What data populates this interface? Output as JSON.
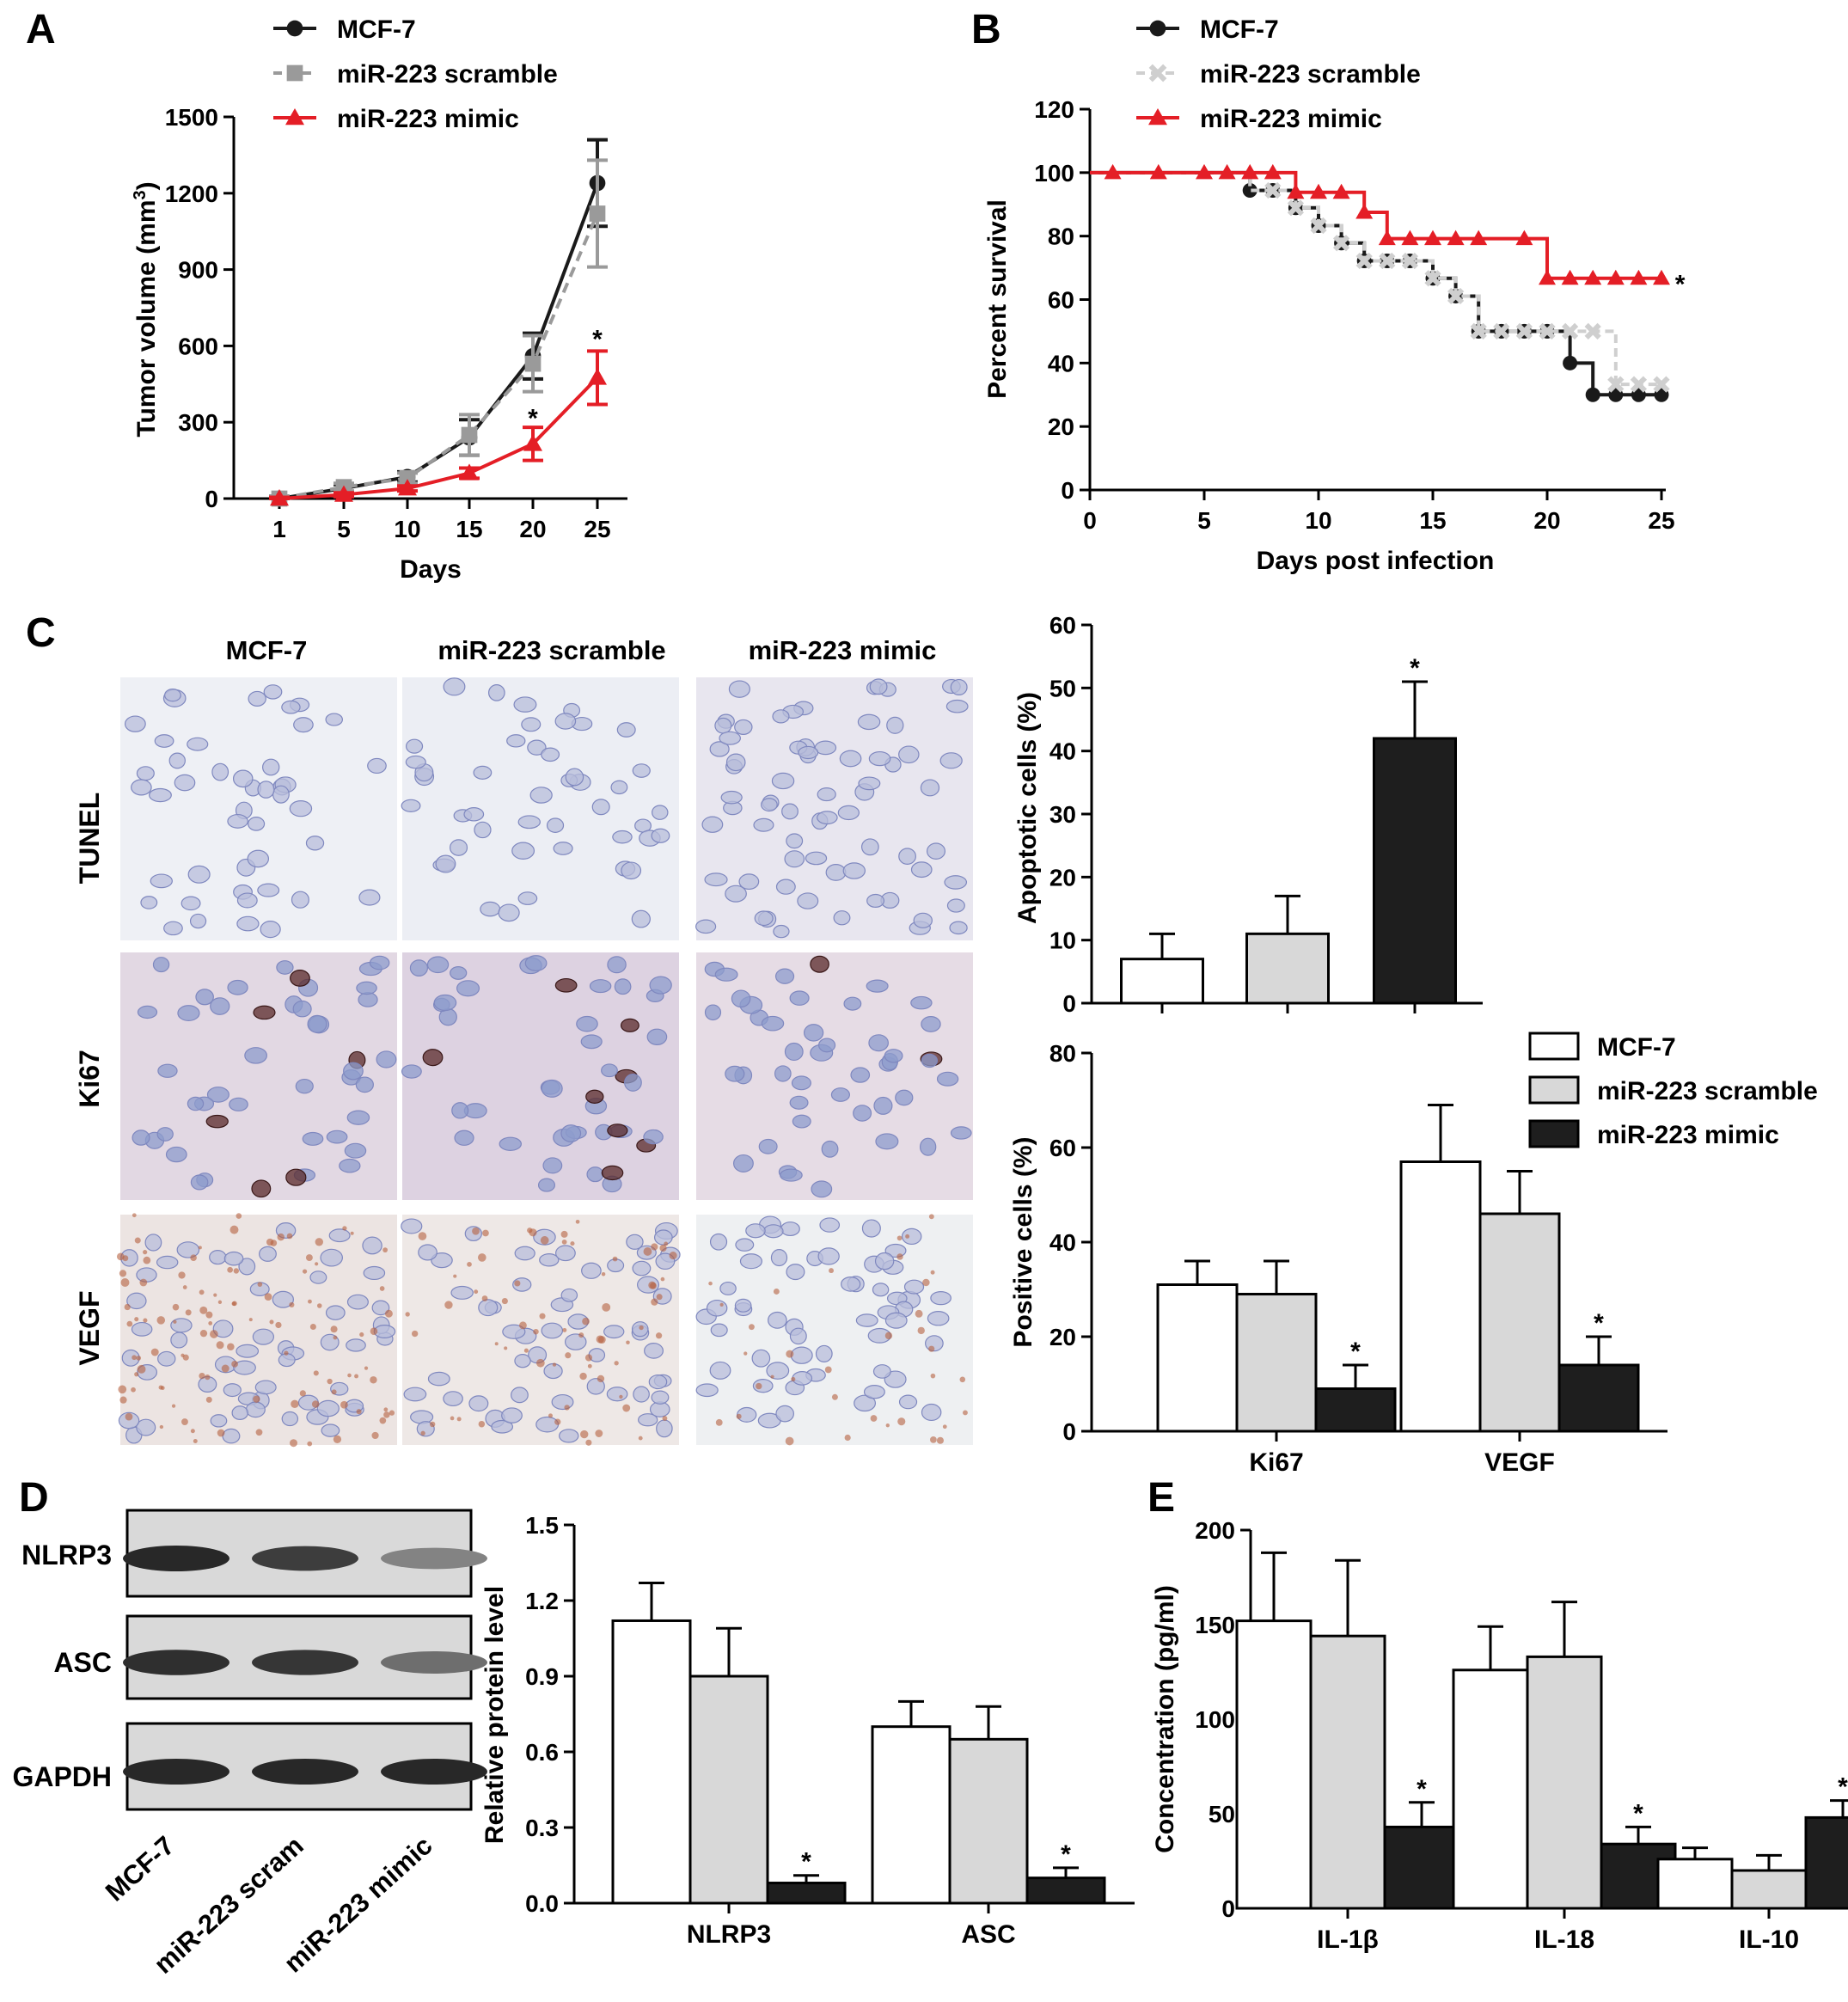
{
  "colors": {
    "mcf7": "#1a1a1a",
    "scramble": "#9a9a9a",
    "scramble_km": "#cfcfcf",
    "mimic": "#e41e26",
    "bar_white": "#ffffff",
    "bar_gray": "#d8d8d8",
    "bar_black": "#1e1e1e"
  },
  "panels": {
    "A": "A",
    "B": "B",
    "C": "C",
    "D": "D",
    "E": "E"
  },
  "panel_c": {
    "columns": [
      "MCF-7",
      "miR-223 scramble",
      "miR-223 mimic"
    ],
    "rows": [
      "TUNEL",
      "Ki67",
      "VEGF"
    ]
  },
  "panel_d_blot": {
    "bands": [
      "NLRP3",
      "ASC",
      "GAPDH"
    ],
    "lanes": [
      "MCF-7",
      "miR-223 scram",
      "miR-223 mimic"
    ],
    "band_intensity": [
      [
        1.0,
        0.85,
        0.35
      ],
      [
        0.95,
        0.9,
        0.5
      ],
      [
        1.0,
        1.0,
        1.0
      ]
    ]
  },
  "chart_data": [
    {
      "id": "A",
      "type": "line",
      "xlabel": "Days",
      "ylabel": "Tumor volume (mm",
      "ylabel_sup": "3",
      "ylabel_tail": ")",
      "xticks": [
        1,
        5,
        10,
        15,
        20,
        25
      ],
      "yticks": [
        0,
        300,
        600,
        900,
        1200,
        1500
      ],
      "ylim": [
        0,
        1500
      ],
      "series": [
        {
          "name": "MCF-7",
          "marker": "circle",
          "dashed": false,
          "x": [
            1,
            5,
            10,
            15,
            20,
            25
          ],
          "y": [
            0,
            40,
            85,
            240,
            560,
            1240
          ],
          "err": [
            10,
            15,
            20,
            70,
            90,
            170
          ]
        },
        {
          "name": "miR-223 scramble",
          "marker": "square",
          "dashed": true,
          "x": [
            1,
            5,
            10,
            15,
            20,
            25
          ],
          "y": [
            0,
            45,
            80,
            250,
            530,
            1120
          ],
          "err": [
            10,
            15,
            20,
            80,
            110,
            210
          ]
        },
        {
          "name": "miR-223 mimic",
          "marker": "triangle",
          "dashed": false,
          "x": [
            1,
            5,
            10,
            15,
            20,
            25
          ],
          "y": [
            0,
            15,
            40,
            100,
            215,
            475
          ],
          "err": [
            5,
            8,
            10,
            20,
            65,
            105
          ]
        }
      ],
      "annotations": [
        {
          "x": 20,
          "y": 330,
          "text": "*"
        },
        {
          "x": 25,
          "y": 640,
          "text": "*"
        }
      ]
    },
    {
      "id": "B",
      "type": "line",
      "subtype": "kaplan-meier",
      "xlabel": "Days post infection",
      "ylabel": "Percent survival",
      "xticks": [
        0,
        5,
        10,
        15,
        20,
        25
      ],
      "yticks": [
        0,
        20,
        40,
        60,
        80,
        100,
        120
      ],
      "xlim": [
        0,
        25
      ],
      "ylim": [
        0,
        120
      ],
      "series": [
        {
          "name": "MCF-7",
          "marker": "circle",
          "dashed": false,
          "steps": [
            [
              0,
              100
            ],
            [
              7,
              94.4
            ],
            [
              8,
              94.4
            ],
            [
              9,
              88.9
            ],
            [
              10,
              83.3
            ],
            [
              11,
              77.8
            ],
            [
              12,
              72.2
            ],
            [
              15,
              66.7
            ],
            [
              16,
              61.1
            ],
            [
              17,
              50
            ],
            [
              21,
              40
            ],
            [
              22,
              30
            ],
            [
              25,
              30
            ]
          ],
          "markers": [
            [
              7,
              94.4
            ],
            [
              8,
              94.4
            ],
            [
              9,
              88.9
            ],
            [
              10,
              83.3
            ],
            [
              11,
              77.8
            ],
            [
              12,
              72.2
            ],
            [
              13,
              72.2
            ],
            [
              14,
              72.2
            ],
            [
              15,
              66.7
            ],
            [
              16,
              61.1
            ],
            [
              17,
              50
            ],
            [
              18,
              50
            ],
            [
              19,
              50
            ],
            [
              20,
              50
            ],
            [
              21,
              40
            ],
            [
              22,
              30
            ],
            [
              23,
              30
            ],
            [
              24,
              30
            ],
            [
              25,
              30
            ]
          ]
        },
        {
          "name": "miR-223 scramble",
          "marker": "x",
          "dashed": true,
          "steps": [
            [
              0,
              100
            ],
            [
              7,
              94.4
            ],
            [
              8,
              94.4
            ],
            [
              9,
              88.9
            ],
            [
              10,
              83.3
            ],
            [
              11,
              77.8
            ],
            [
              12,
              72.2
            ],
            [
              15,
              66.7
            ],
            [
              16,
              61.1
            ],
            [
              17,
              50
            ],
            [
              23,
              33.3
            ],
            [
              25,
              33.3
            ]
          ],
          "markers": [
            [
              8,
              94.4
            ],
            [
              9,
              88.9
            ],
            [
              10,
              83.3
            ],
            [
              11,
              77.8
            ],
            [
              12,
              72.2
            ],
            [
              13,
              72.2
            ],
            [
              14,
              72.2
            ],
            [
              15,
              66.7
            ],
            [
              16,
              61.1
            ],
            [
              17,
              50
            ],
            [
              18,
              50
            ],
            [
              19,
              50
            ],
            [
              20,
              50
            ],
            [
              21,
              50
            ],
            [
              22,
              50
            ],
            [
              23,
              33.3
            ],
            [
              24,
              33.3
            ],
            [
              25,
              33.3
            ]
          ]
        },
        {
          "name": "miR-223 mimic",
          "marker": "triangle",
          "dashed": false,
          "steps": [
            [
              0,
              100
            ],
            [
              9,
              93.8
            ],
            [
              12,
              87.5
            ],
            [
              13,
              79.2
            ],
            [
              20,
              66.7
            ],
            [
              25,
              66.7
            ]
          ],
          "markers": [
            [
              1,
              100
            ],
            [
              3,
              100
            ],
            [
              5,
              100
            ],
            [
              6,
              100
            ],
            [
              7,
              100
            ],
            [
              8,
              100
            ],
            [
              9,
              93.8
            ],
            [
              10,
              93.8
            ],
            [
              11,
              93.8
            ],
            [
              12,
              87.5
            ],
            [
              13,
              79.2
            ],
            [
              14,
              79.2
            ],
            [
              15,
              79.2
            ],
            [
              16,
              79.2
            ],
            [
              17,
              79.2
            ],
            [
              19,
              79.2
            ],
            [
              20,
              66.7
            ],
            [
              21,
              66.7
            ],
            [
              22,
              66.7
            ],
            [
              23,
              66.7
            ],
            [
              24,
              66.7
            ],
            [
              25,
              66.7
            ]
          ]
        }
      ],
      "annotations": [
        {
          "x": 26,
          "y": 66,
          "text": "*"
        }
      ]
    },
    {
      "id": "C-apoptotic",
      "type": "bar",
      "ylabel": "Apoptotic cells (%)",
      "yticks": [
        0,
        10,
        20,
        30,
        40,
        50,
        60
      ],
      "ylim": [
        0,
        60
      ],
      "categories": [
        "MCF-7",
        "miR-223 scramble",
        "miR-223 mimic"
      ],
      "values": [
        7,
        11,
        42
      ],
      "errors": [
        4,
        6,
        9
      ],
      "stars": [
        false,
        false,
        true
      ]
    },
    {
      "id": "C-positive",
      "type": "bar",
      "ylabel": "Positive cells (%)",
      "yticks": [
        0,
        20,
        40,
        60,
        80
      ],
      "ylim": [
        0,
        80
      ],
      "categories": [
        "Ki67",
        "VEGF"
      ],
      "series": [
        {
          "name": "MCF-7",
          "values": [
            31,
            57
          ],
          "errors": [
            5,
            12
          ],
          "stars": [
            false,
            false
          ]
        },
        {
          "name": "miR-223 scramble",
          "values": [
            29,
            46
          ],
          "errors": [
            7,
            9
          ],
          "stars": [
            false,
            false
          ]
        },
        {
          "name": "miR-223 mimic",
          "values": [
            9,
            14
          ],
          "errors": [
            5,
            6
          ],
          "stars": [
            true,
            true
          ]
        }
      ]
    },
    {
      "id": "D",
      "type": "bar",
      "ylabel": "Relative protein level",
      "yticks": [
        "0.0",
        "0.3",
        "0.6",
        "0.9",
        "1.2",
        "1.5"
      ],
      "ylim": [
        0,
        1.5
      ],
      "categories": [
        "NLRP3",
        "ASC"
      ],
      "series": [
        {
          "name": "MCF-7",
          "values": [
            1.12,
            0.7
          ],
          "errors": [
            0.15,
            0.1
          ],
          "stars": [
            false,
            false
          ]
        },
        {
          "name": "miR-223 scramble",
          "values": [
            0.9,
            0.65
          ],
          "errors": [
            0.19,
            0.13
          ],
          "stars": [
            false,
            false
          ]
        },
        {
          "name": "miR-223 mimic",
          "values": [
            0.08,
            0.1
          ],
          "errors": [
            0.03,
            0.04
          ],
          "stars": [
            true,
            true
          ]
        }
      ]
    },
    {
      "id": "E",
      "type": "bar",
      "ylabel": "Concentration (pg/ml)",
      "yticks": [
        0,
        50,
        100,
        150,
        200
      ],
      "ylim": [
        0,
        200
      ],
      "categories": [
        "IL-1β",
        "IL-18",
        "IL-10"
      ],
      "series": [
        {
          "name": "MCF-7",
          "values": [
            152,
            126,
            26
          ],
          "errors": [
            36,
            23,
            6
          ],
          "stars": [
            false,
            false,
            false
          ]
        },
        {
          "name": "miR-223 scramble",
          "values": [
            144,
            133,
            20
          ],
          "errors": [
            40,
            29,
            8
          ],
          "stars": [
            false,
            false,
            false
          ]
        },
        {
          "name": "miR-223 mimic",
          "values": [
            43,
            34,
            48
          ],
          "errors": [
            13,
            9,
            9
          ],
          "stars": [
            true,
            true,
            true
          ]
        }
      ]
    }
  ]
}
